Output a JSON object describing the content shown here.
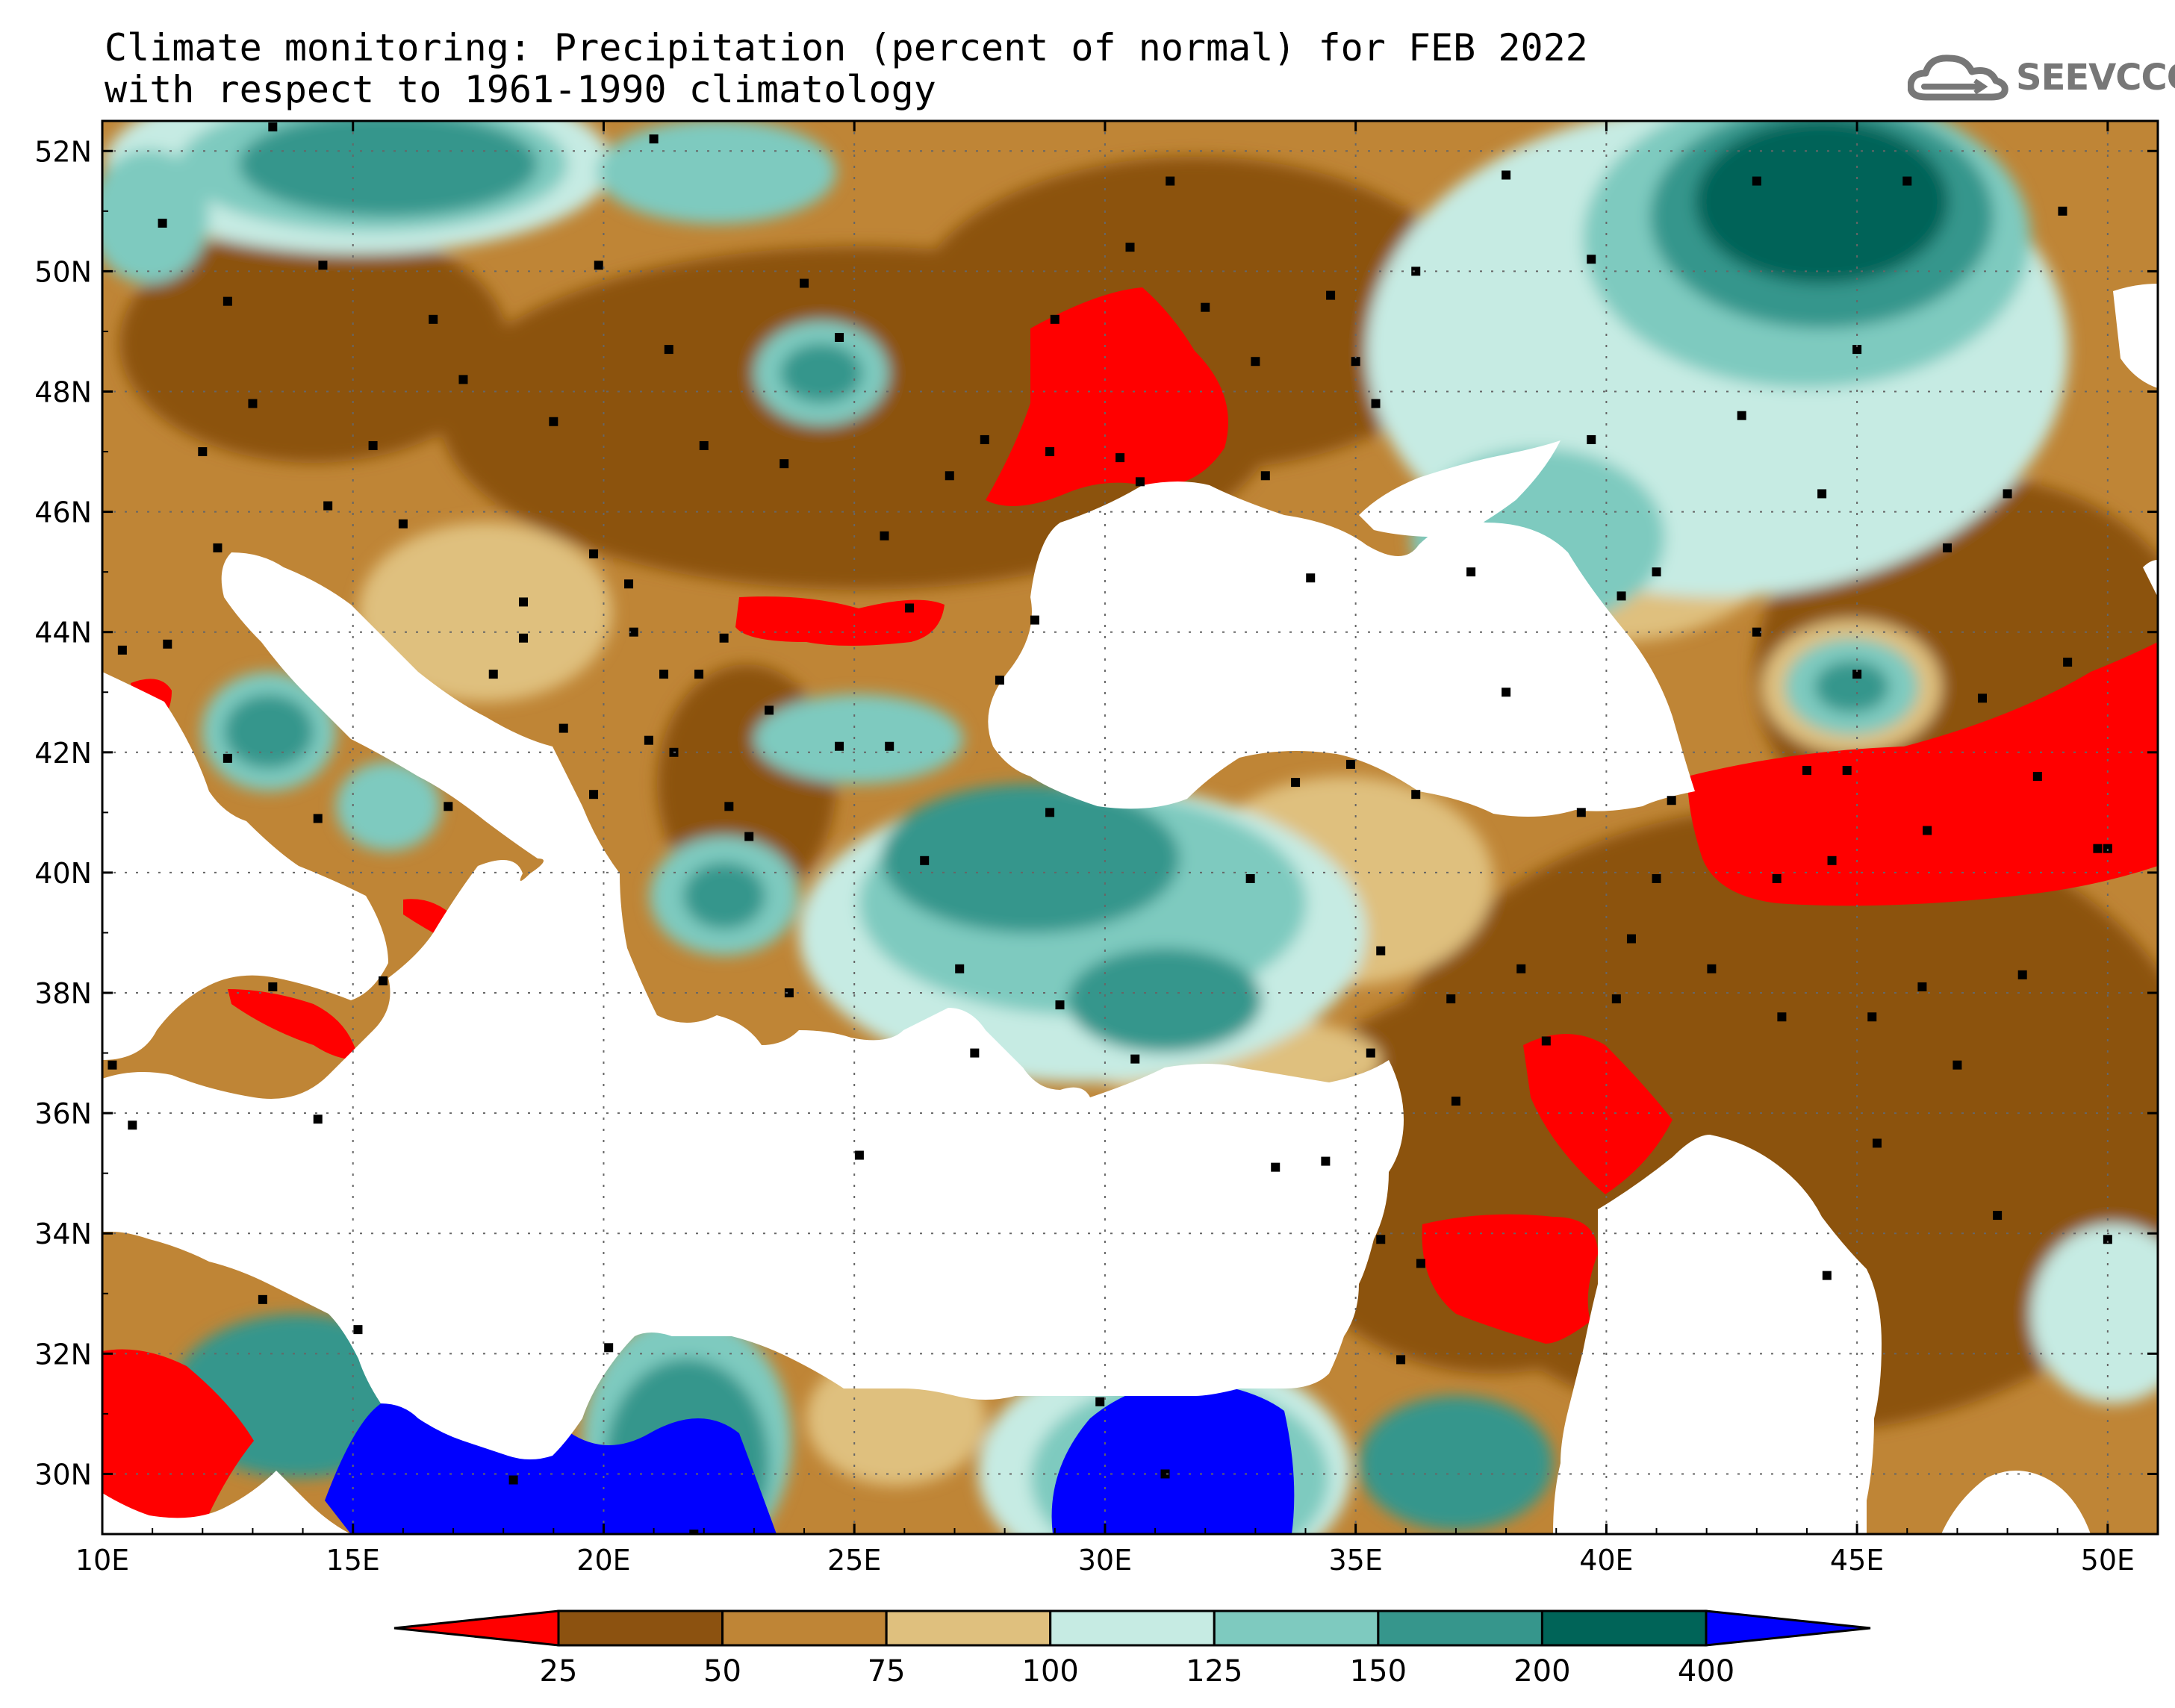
{
  "header": {
    "title_line1": "Climate monitoring: Precipitation (percent of normal) for FEB 2022",
    "title_line2": "with respect to 1961-1990 climatology",
    "logo_text": "SEEVCCC"
  },
  "map": {
    "lon_range": [
      10,
      51
    ],
    "lat_range": [
      29,
      52.5
    ],
    "lon_ticks": [
      "10E",
      "15E",
      "20E",
      "25E",
      "30E",
      "35E",
      "40E",
      "45E",
      "50E"
    ],
    "lat_ticks": [
      "52N",
      "50N",
      "48N",
      "46N",
      "44N",
      "42N",
      "40N",
      "38N",
      "36N",
      "34N",
      "32N",
      "30N"
    ],
    "grid": true
  },
  "legend": {
    "labels": [
      "25",
      "50",
      "75",
      "100",
      "125",
      "150",
      "200",
      "400"
    ],
    "colors": [
      "#ff0000",
      "#8c5210",
      "#bf8536",
      "#dfc07e",
      "#c6ebe3",
      "#7ecabf",
      "#36968c",
      "#006458",
      "#0000ff"
    ]
  }
}
